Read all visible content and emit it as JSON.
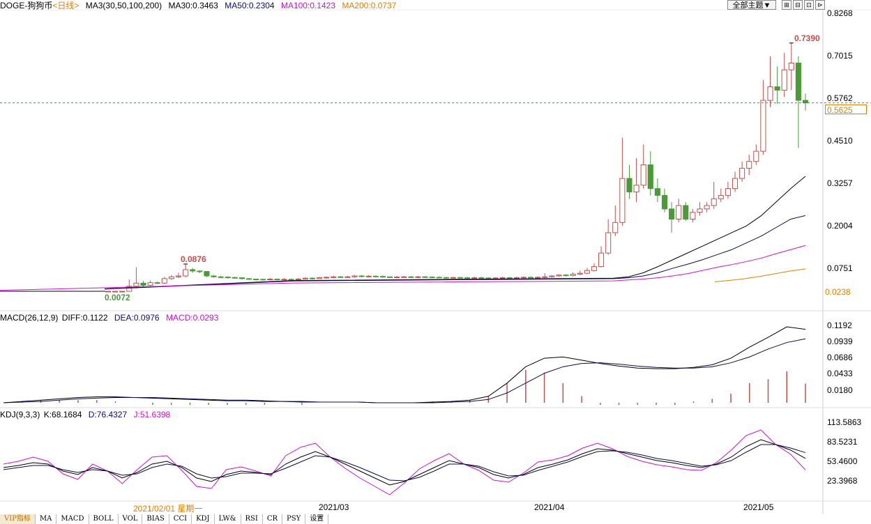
{
  "header": {
    "symbol": "DOGE-狗狗币",
    "period": "<日线>",
    "ma_group": "MA3(30,50,100,200)",
    "ma30": "MA30:0.3463",
    "ma50": "MA50:0.2304",
    "ma100": "MA100:0.1423",
    "ma200": "MA200:0.0737"
  },
  "toolbar": {
    "theme_label": "全部主题▼",
    "tools": [
      "⊞",
      "⊟",
      "⊡",
      "⊳"
    ]
  },
  "macd_header": {
    "title": "MACD(26,12,9)",
    "diff": "DIFF:0.1122",
    "dea": "DEA:0.0976",
    "macd": "MACD:0.0293"
  },
  "kdj_header": {
    "title": "KDJ(9,3,3)",
    "k": "K:68.1684",
    "d": "D:76.4327",
    "j": "J:51.6398"
  },
  "price_axis": [
    "0.8268",
    "0.7015",
    "0.5762",
    "0.4510",
    "0.3257",
    "0.2004",
    "0.0751",
    "0.0238"
  ],
  "current_price": "0.5625",
  "macd_axis": [
    "0.1192",
    "0.0939",
    "0.0686",
    "0.0433",
    "0.0180"
  ],
  "kdj_axis": [
    "113.5863",
    "83.5231",
    "53.4600",
    "23.3968"
  ],
  "annotations": {
    "high": "0.7390",
    "mid_high": "0.0876",
    "low": "0.0072"
  },
  "x_labels": {
    "cursor_date": "2021/02/01 星期一",
    "mar": "2021/03",
    "apr": "2021/04",
    "may": "2021/05"
  },
  "tabs": [
    "VIP指标",
    "MA",
    "MACD",
    "BOLL",
    "VOL",
    "BIAS",
    "CCI",
    "KDJ",
    "LW&",
    "RSI",
    "CR",
    "PSY",
    "设置"
  ],
  "colors": {
    "up": "#c0504d",
    "down": "#4a9a3a",
    "ma30": "#000000",
    "ma50": "#0a0a50",
    "ma100": "#d010d0",
    "ma200": "#e08000",
    "accent": "#e08000"
  },
  "chart_data": [
    {
      "type": "candlestick",
      "title": "DOGE-狗狗币 日线",
      "ylim": [
        0.0238,
        0.8268
      ],
      "y_ticks": [
        0.8268,
        0.7015,
        0.5762,
        0.451,
        0.3257,
        0.2004,
        0.0751,
        0.0238
      ],
      "candles": [
        {
          "o": 0.008,
          "c": 0.0085,
          "h": 0.009,
          "l": 0.0072
        },
        {
          "o": 0.0085,
          "c": 0.011,
          "h": 0.015,
          "l": 0.008
        },
        {
          "o": 0.011,
          "c": 0.017,
          "h": 0.02,
          "l": 0.01
        },
        {
          "o": 0.017,
          "c": 0.035,
          "h": 0.05,
          "l": 0.016
        },
        {
          "o": 0.035,
          "c": 0.042,
          "h": 0.078,
          "l": 0.03
        },
        {
          "o": 0.042,
          "c": 0.037,
          "h": 0.047,
          "l": 0.033
        },
        {
          "o": 0.037,
          "c": 0.043,
          "h": 0.048,
          "l": 0.035
        },
        {
          "o": 0.043,
          "c": 0.042,
          "h": 0.046,
          "l": 0.04
        },
        {
          "o": 0.042,
          "c": 0.052,
          "h": 0.056,
          "l": 0.04
        },
        {
          "o": 0.052,
          "c": 0.056,
          "h": 0.06,
          "l": 0.049
        },
        {
          "o": 0.056,
          "c": 0.058,
          "h": 0.065,
          "l": 0.053
        },
        {
          "o": 0.058,
          "c": 0.072,
          "h": 0.0876,
          "l": 0.055
        },
        {
          "o": 0.072,
          "c": 0.069,
          "h": 0.076,
          "l": 0.065
        },
        {
          "o": 0.069,
          "c": 0.068,
          "h": 0.071,
          "l": 0.064
        },
        {
          "o": 0.068,
          "c": 0.058,
          "h": 0.069,
          "l": 0.055
        },
        {
          "o": 0.058,
          "c": 0.056,
          "h": 0.06,
          "l": 0.054
        },
        {
          "o": 0.056,
          "c": 0.0555,
          "h": 0.058,
          "l": 0.053
        },
        {
          "o": 0.0555,
          "c": 0.0545,
          "h": 0.057,
          "l": 0.052
        },
        {
          "o": 0.0545,
          "c": 0.054,
          "h": 0.056,
          "l": 0.052
        },
        {
          "o": 0.054,
          "c": 0.052,
          "h": 0.055,
          "l": 0.05
        },
        {
          "o": 0.052,
          "c": 0.051,
          "h": 0.053,
          "l": 0.049
        },
        {
          "o": 0.051,
          "c": 0.0505,
          "h": 0.052,
          "l": 0.048
        },
        {
          "o": 0.0505,
          "c": 0.05,
          "h": 0.052,
          "l": 0.048
        },
        {
          "o": 0.05,
          "c": 0.051,
          "h": 0.053,
          "l": 0.048
        },
        {
          "o": 0.051,
          "c": 0.05,
          "h": 0.052,
          "l": 0.048
        },
        {
          "o": 0.05,
          "c": 0.0505,
          "h": 0.053,
          "l": 0.048
        },
        {
          "o": 0.0505,
          "c": 0.05,
          "h": 0.052,
          "l": 0.048
        },
        {
          "o": 0.05,
          "c": 0.051,
          "h": 0.053,
          "l": 0.049
        },
        {
          "o": 0.051,
          "c": 0.053,
          "h": 0.055,
          "l": 0.05
        },
        {
          "o": 0.053,
          "c": 0.052,
          "h": 0.055,
          "l": 0.05
        },
        {
          "o": 0.052,
          "c": 0.054,
          "h": 0.056,
          "l": 0.051
        },
        {
          "o": 0.054,
          "c": 0.055,
          "h": 0.057,
          "l": 0.052
        },
        {
          "o": 0.055,
          "c": 0.056,
          "h": 0.058,
          "l": 0.053
        },
        {
          "o": 0.056,
          "c": 0.0555,
          "h": 0.058,
          "l": 0.054
        },
        {
          "o": 0.0555,
          "c": 0.056,
          "h": 0.058,
          "l": 0.054
        },
        {
          "o": 0.056,
          "c": 0.058,
          "h": 0.06,
          "l": 0.054
        },
        {
          "o": 0.058,
          "c": 0.057,
          "h": 0.06,
          "l": 0.055
        },
        {
          "o": 0.057,
          "c": 0.0575,
          "h": 0.06,
          "l": 0.055
        },
        {
          "o": 0.0575,
          "c": 0.057,
          "h": 0.059,
          "l": 0.055
        },
        {
          "o": 0.057,
          "c": 0.056,
          "h": 0.059,
          "l": 0.054
        },
        {
          "o": 0.056,
          "c": 0.055,
          "h": 0.057,
          "l": 0.053
        },
        {
          "o": 0.055,
          "c": 0.0555,
          "h": 0.058,
          "l": 0.053
        },
        {
          "o": 0.0555,
          "c": 0.056,
          "h": 0.058,
          "l": 0.054
        },
        {
          "o": 0.056,
          "c": 0.055,
          "h": 0.058,
          "l": 0.053
        },
        {
          "o": 0.055,
          "c": 0.056,
          "h": 0.058,
          "l": 0.053
        },
        {
          "o": 0.056,
          "c": 0.0555,
          "h": 0.058,
          "l": 0.054
        },
        {
          "o": 0.0555,
          "c": 0.055,
          "h": 0.057,
          "l": 0.053
        },
        {
          "o": 0.055,
          "c": 0.0545,
          "h": 0.057,
          "l": 0.053
        },
        {
          "o": 0.0545,
          "c": 0.054,
          "h": 0.056,
          "l": 0.052
        },
        {
          "o": 0.054,
          "c": 0.0545,
          "h": 0.056,
          "l": 0.052
        },
        {
          "o": 0.0545,
          "c": 0.054,
          "h": 0.056,
          "l": 0.052
        },
        {
          "o": 0.054,
          "c": 0.0535,
          "h": 0.056,
          "l": 0.052
        },
        {
          "o": 0.0535,
          "c": 0.054,
          "h": 0.056,
          "l": 0.052
        },
        {
          "o": 0.054,
          "c": 0.0535,
          "h": 0.056,
          "l": 0.052
        },
        {
          "o": 0.0535,
          "c": 0.053,
          "h": 0.055,
          "l": 0.051
        },
        {
          "o": 0.053,
          "c": 0.0535,
          "h": 0.055,
          "l": 0.051
        },
        {
          "o": 0.0535,
          "c": 0.054,
          "h": 0.056,
          "l": 0.052
        },
        {
          "o": 0.054,
          "c": 0.0535,
          "h": 0.056,
          "l": 0.052
        },
        {
          "o": 0.0535,
          "c": 0.054,
          "h": 0.056,
          "l": 0.052
        },
        {
          "o": 0.054,
          "c": 0.055,
          "h": 0.057,
          "l": 0.052
        },
        {
          "o": 0.055,
          "c": 0.0545,
          "h": 0.057,
          "l": 0.053
        },
        {
          "o": 0.0545,
          "c": 0.055,
          "h": 0.057,
          "l": 0.053
        },
        {
          "o": 0.055,
          "c": 0.056,
          "h": 0.064,
          "l": 0.053
        },
        {
          "o": 0.056,
          "c": 0.058,
          "h": 0.06,
          "l": 0.054
        },
        {
          "o": 0.058,
          "c": 0.06,
          "h": 0.062,
          "l": 0.056
        },
        {
          "o": 0.06,
          "c": 0.059,
          "h": 0.062,
          "l": 0.057
        },
        {
          "o": 0.059,
          "c": 0.062,
          "h": 0.066,
          "l": 0.057
        },
        {
          "o": 0.062,
          "c": 0.064,
          "h": 0.07,
          "l": 0.06
        },
        {
          "o": 0.064,
          "c": 0.07,
          "h": 0.076,
          "l": 0.062
        },
        {
          "o": 0.07,
          "c": 0.08,
          "h": 0.09,
          "l": 0.068
        },
        {
          "o": 0.08,
          "c": 0.12,
          "h": 0.14,
          "l": 0.078
        },
        {
          "o": 0.12,
          "c": 0.18,
          "h": 0.22,
          "l": 0.115
        },
        {
          "o": 0.18,
          "c": 0.21,
          "h": 0.26,
          "l": 0.17
        },
        {
          "o": 0.21,
          "c": 0.34,
          "h": 0.46,
          "l": 0.2
        },
        {
          "o": 0.34,
          "c": 0.3,
          "h": 0.38,
          "l": 0.28
        },
        {
          "o": 0.3,
          "c": 0.32,
          "h": 0.4,
          "l": 0.27
        },
        {
          "o": 0.32,
          "c": 0.38,
          "h": 0.44,
          "l": 0.31
        },
        {
          "o": 0.38,
          "c": 0.31,
          "h": 0.42,
          "l": 0.29
        },
        {
          "o": 0.31,
          "c": 0.29,
          "h": 0.34,
          "l": 0.27
        },
        {
          "o": 0.29,
          "c": 0.25,
          "h": 0.31,
          "l": 0.24
        },
        {
          "o": 0.25,
          "c": 0.22,
          "h": 0.27,
          "l": 0.18
        },
        {
          "o": 0.22,
          "c": 0.26,
          "h": 0.28,
          "l": 0.21
        },
        {
          "o": 0.26,
          "c": 0.22,
          "h": 0.27,
          "l": 0.215
        },
        {
          "o": 0.22,
          "c": 0.24,
          "h": 0.25,
          "l": 0.21
        },
        {
          "o": 0.24,
          "c": 0.25,
          "h": 0.27,
          "l": 0.23
        },
        {
          "o": 0.25,
          "c": 0.26,
          "h": 0.27,
          "l": 0.24
        },
        {
          "o": 0.26,
          "c": 0.28,
          "h": 0.33,
          "l": 0.25
        },
        {
          "o": 0.28,
          "c": 0.29,
          "h": 0.31,
          "l": 0.27
        },
        {
          "o": 0.29,
          "c": 0.31,
          "h": 0.33,
          "l": 0.28
        },
        {
          "o": 0.31,
          "c": 0.34,
          "h": 0.36,
          "l": 0.3
        },
        {
          "o": 0.34,
          "c": 0.37,
          "h": 0.39,
          "l": 0.33
        },
        {
          "o": 0.37,
          "c": 0.39,
          "h": 0.41,
          "l": 0.35
        },
        {
          "o": 0.39,
          "c": 0.42,
          "h": 0.44,
          "l": 0.38
        },
        {
          "o": 0.42,
          "c": 0.57,
          "h": 0.63,
          "l": 0.41
        },
        {
          "o": 0.57,
          "c": 0.61,
          "h": 0.7,
          "l": 0.55
        },
        {
          "o": 0.61,
          "c": 0.6,
          "h": 0.67,
          "l": 0.56
        },
        {
          "o": 0.6,
          "c": 0.66,
          "h": 0.71,
          "l": 0.58
        },
        {
          "o": 0.66,
          "c": 0.68,
          "h": 0.739,
          "l": 0.6
        },
        {
          "o": 0.68,
          "c": 0.57,
          "h": 0.7,
          "l": 0.43
        },
        {
          "o": 0.57,
          "c": 0.5625,
          "h": 0.59,
          "l": 0.54
        }
      ],
      "ma30_tail": [
        0.053,
        0.056,
        0.065,
        0.08,
        0.1,
        0.12,
        0.14,
        0.16,
        0.18,
        0.2,
        0.23,
        0.27,
        0.31,
        0.3463
      ],
      "ma50_tail": [
        0.052,
        0.054,
        0.058,
        0.065,
        0.075,
        0.087,
        0.1,
        0.115,
        0.13,
        0.15,
        0.17,
        0.195,
        0.22,
        0.2304
      ],
      "ma100_tail": [
        0.047,
        0.049,
        0.051,
        0.054,
        0.058,
        0.063,
        0.07,
        0.078,
        0.086,
        0.095,
        0.105,
        0.118,
        0.13,
        0.1423
      ],
      "ma200_tail": [
        0.045,
        0.048,
        0.052,
        0.057,
        0.063,
        0.069,
        0.0737
      ],
      "current_price": 0.5625,
      "annotations": [
        {
          "label": "0.7390",
          "type": "high"
        },
        {
          "label": "0.0876",
          "type": "local-high"
        },
        {
          "label": "0.0072",
          "type": "low"
        }
      ]
    },
    {
      "type": "macd",
      "title": "MACD(26,12,9)",
      "ylim": [
        0.0,
        0.1192
      ],
      "y_ticks": [
        0.1192,
        0.0939,
        0.0686,
        0.0433,
        0.018
      ],
      "diff": [
        0.0,
        0.002,
        0.004,
        0.006,
        0.008,
        0.009,
        0.009,
        0.008,
        0.007,
        0.006,
        0.005,
        0.004,
        0.003,
        0.003,
        0.002,
        0.002,
        0.001,
        0.001,
        0.001,
        0.001,
        0.0,
        0.0,
        0.0,
        0.001,
        0.002,
        0.004,
        0.01,
        0.03,
        0.055,
        0.068,
        0.07,
        0.065,
        0.06,
        0.056,
        0.053,
        0.052,
        0.052,
        0.054,
        0.058,
        0.068,
        0.085,
        0.1,
        0.116,
        0.1122
      ],
      "dea": [
        0.0,
        0.001,
        0.002,
        0.004,
        0.006,
        0.007,
        0.008,
        0.008,
        0.008,
        0.007,
        0.006,
        0.005,
        0.004,
        0.004,
        0.003,
        0.002,
        0.002,
        0.001,
        0.001,
        0.001,
        0.0,
        0.0,
        0.0,
        0.0,
        0.001,
        0.002,
        0.005,
        0.015,
        0.03,
        0.045,
        0.055,
        0.06,
        0.061,
        0.059,
        0.056,
        0.054,
        0.053,
        0.053,
        0.055,
        0.061,
        0.07,
        0.082,
        0.092,
        0.0976
      ],
      "macd_hist": [
        0.0,
        0.002,
        0.004,
        0.004,
        0.004,
        0.004,
        0.002,
        0.0,
        -0.002,
        -0.002,
        -0.002,
        -0.002,
        -0.002,
        -0.002,
        -0.002,
        0.0,
        -0.002,
        0.0,
        0.0,
        0.0,
        0.0,
        0.0,
        0.0,
        0.002,
        0.002,
        0.004,
        0.01,
        0.03,
        0.05,
        0.046,
        0.03,
        0.01,
        -0.002,
        -0.006,
        -0.006,
        -0.004,
        -0.002,
        0.002,
        0.006,
        0.014,
        0.03,
        0.036,
        0.048,
        0.0293
      ]
    },
    {
      "type": "kdj",
      "title": "KDJ(9,3,3)",
      "ylim": [
        10,
        120
      ],
      "y_ticks": [
        113.5863,
        83.5231,
        53.46,
        23.3968
      ],
      "k": [
        55,
        58,
        62,
        60,
        50,
        45,
        55,
        50,
        40,
        48,
        60,
        64,
        55,
        40,
        35,
        45,
        50,
        48,
        45,
        60,
        70,
        78,
        70,
        60,
        50,
        40,
        30,
        35,
        45,
        55,
        65,
        60,
        55,
        45,
        40,
        45,
        55,
        60,
        66,
        75,
        82,
        80,
        75,
        70,
        65,
        62,
        58,
        55,
        60,
        70,
        85,
        95,
        88,
        80,
        68.17
      ],
      "d": [
        52,
        55,
        58,
        58,
        52,
        48,
        52,
        50,
        44,
        46,
        55,
        60,
        57,
        46,
        40,
        42,
        47,
        47,
        46,
        54,
        63,
        72,
        70,
        63,
        55,
        46,
        37,
        36,
        41,
        50,
        60,
        60,
        57,
        49,
        43,
        44,
        51,
        57,
        63,
        71,
        78,
        79,
        77,
        73,
        68,
        65,
        61,
        57,
        59,
        65,
        77,
        88,
        88,
        83,
        76.43
      ],
      "j": [
        60,
        64,
        70,
        64,
        46,
        38,
        60,
        50,
        32,
        52,
        70,
        72,
        51,
        28,
        25,
        52,
        56,
        50,
        43,
        72,
        84,
        90,
        70,
        54,
        40,
        28,
        16,
        33,
        53,
        65,
        75,
        60,
        51,
        37,
        34,
        47,
        63,
        66,
        72,
        83,
        90,
        82,
        71,
        64,
        59,
        56,
        52,
        51,
        62,
        80,
        101,
        109,
        88,
        74,
        51.64
      ]
    }
  ]
}
